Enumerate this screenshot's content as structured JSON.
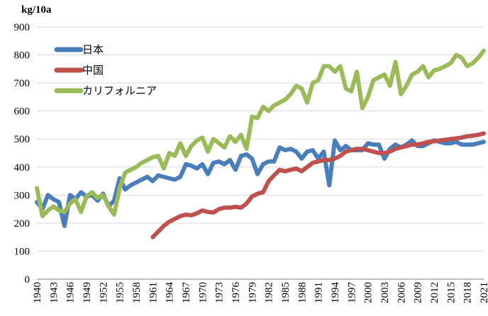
{
  "chart_data": {
    "type": "line",
    "title": "",
    "unit_label": "kg/10a",
    "xlabel": "",
    "ylabel": "kg/10a",
    "ylim": [
      0,
      900
    ],
    "yticks": [
      0,
      100,
      200,
      300,
      400,
      500,
      600,
      700,
      800,
      900
    ],
    "xlim": [
      1940,
      2021
    ],
    "xticks": [
      1940,
      1943,
      1946,
      1949,
      1952,
      1955,
      1958,
      1961,
      1964,
      1967,
      1970,
      1973,
      1976,
      1979,
      1982,
      1985,
      1988,
      1991,
      1994,
      1997,
      2000,
      2003,
      2006,
      2009,
      2012,
      2015,
      2018,
      2021
    ],
    "legend_position": "top-left",
    "grid": "horizontal",
    "series": [
      {
        "name": "日本",
        "color": "#4a7ebb",
        "x": [
          1940,
          1941,
          1942,
          1943,
          1944,
          1945,
          1946,
          1947,
          1948,
          1949,
          1950,
          1951,
          1952,
          1953,
          1954,
          1955,
          1956,
          1957,
          1958,
          1959,
          1960,
          1961,
          1962,
          1963,
          1964,
          1965,
          1966,
          1967,
          1968,
          1969,
          1970,
          1971,
          1972,
          1973,
          1974,
          1975,
          1976,
          1977,
          1978,
          1979,
          1980,
          1981,
          1982,
          1983,
          1984,
          1985,
          1986,
          1987,
          1988,
          1989,
          1990,
          1991,
          1992,
          1993,
          1994,
          1995,
          1996,
          1997,
          1998,
          1999,
          2000,
          2001,
          2002,
          2003,
          2004,
          2005,
          2006,
          2007,
          2008,
          2009,
          2010,
          2011,
          2012,
          2013,
          2014,
          2015,
          2016,
          2017,
          2018,
          2019,
          2020,
          2021
        ],
        "values": [
          275,
          250,
          300,
          285,
          275,
          190,
          300,
          285,
          310,
          295,
          300,
          280,
          305,
          260,
          280,
          360,
          320,
          335,
          345,
          355,
          365,
          350,
          370,
          365,
          360,
          355,
          365,
          410,
          405,
          395,
          410,
          375,
          415,
          420,
          410,
          425,
          390,
          440,
          445,
          430,
          375,
          410,
          420,
          420,
          470,
          460,
          465,
          455,
          430,
          455,
          460,
          430,
          455,
          335,
          495,
          460,
          475,
          460,
          460,
          460,
          485,
          480,
          480,
          430,
          465,
          480,
          470,
          480,
          495,
          475,
          475,
          485,
          495,
          490,
          485,
          485,
          490,
          480,
          480,
          480,
          485,
          490
        ]
      },
      {
        "name": "中国",
        "color": "#c0504d",
        "x": [
          1961,
          1962,
          1963,
          1964,
          1965,
          1966,
          1967,
          1968,
          1969,
          1970,
          1971,
          1972,
          1973,
          1974,
          1975,
          1976,
          1977,
          1978,
          1979,
          1980,
          1981,
          1982,
          1983,
          1984,
          1985,
          1986,
          1987,
          1988,
          1989,
          1990,
          1991,
          1992,
          1993,
          1994,
          1995,
          1996,
          1997,
          1998,
          1999,
          2000,
          2001,
          2002,
          2003,
          2004,
          2005,
          2006,
          2007,
          2008,
          2009,
          2010,
          2011,
          2012,
          2013,
          2014,
          2015,
          2016,
          2017,
          2018,
          2019,
          2020,
          2021
        ],
        "values": [
          150,
          170,
          190,
          205,
          215,
          225,
          230,
          228,
          235,
          245,
          240,
          238,
          250,
          255,
          255,
          258,
          255,
          270,
          295,
          305,
          310,
          350,
          370,
          390,
          385,
          390,
          395,
          385,
          400,
          415,
          420,
          425,
          425,
          430,
          440,
          455,
          460,
          465,
          465,
          460,
          455,
          450,
          450,
          455,
          465,
          470,
          475,
          480,
          480,
          485,
          490,
          492,
          495,
          497,
          500,
          502,
          505,
          510,
          512,
          515,
          520
        ]
      },
      {
        "name": "カリフォルニア",
        "color": "#9bbb59",
        "x": [
          1940,
          1941,
          1942,
          1943,
          1944,
          1945,
          1946,
          1947,
          1948,
          1949,
          1950,
          1951,
          1952,
          1953,
          1954,
          1955,
          1956,
          1957,
          1958,
          1959,
          1960,
          1961,
          1962,
          1963,
          1964,
          1965,
          1966,
          1967,
          1968,
          1969,
          1970,
          1971,
          1972,
          1973,
          1974,
          1975,
          1976,
          1977,
          1978,
          1979,
          1980,
          1981,
          1982,
          1983,
          1984,
          1985,
          1986,
          1987,
          1988,
          1989,
          1990,
          1991,
          1992,
          1993,
          1994,
          1995,
          1996,
          1997,
          1998,
          1999,
          2000,
          2001,
          2002,
          2003,
          2004,
          2005,
          2006,
          2007,
          2008,
          2009,
          2010,
          2011,
          2012,
          2013,
          2014,
          2015,
          2016,
          2017,
          2018,
          2019,
          2020,
          2021
        ],
        "values": [
          325,
          225,
          245,
          260,
          245,
          240,
          270,
          285,
          240,
          295,
          310,
          290,
          300,
          260,
          230,
          325,
          380,
          390,
          400,
          415,
          425,
          435,
          440,
          395,
          450,
          440,
          485,
          440,
          475,
          495,
          505,
          455,
          500,
          485,
          470,
          510,
          490,
          515,
          465,
          580,
          575,
          615,
          600,
          620,
          630,
          640,
          660,
          690,
          680,
          630,
          700,
          710,
          760,
          760,
          740,
          760,
          680,
          670,
          740,
          610,
          650,
          710,
          720,
          730,
          690,
          775,
          660,
          690,
          730,
          740,
          760,
          720,
          745,
          750,
          760,
          770,
          800,
          790,
          760,
          770,
          790,
          815
        ]
      }
    ]
  }
}
